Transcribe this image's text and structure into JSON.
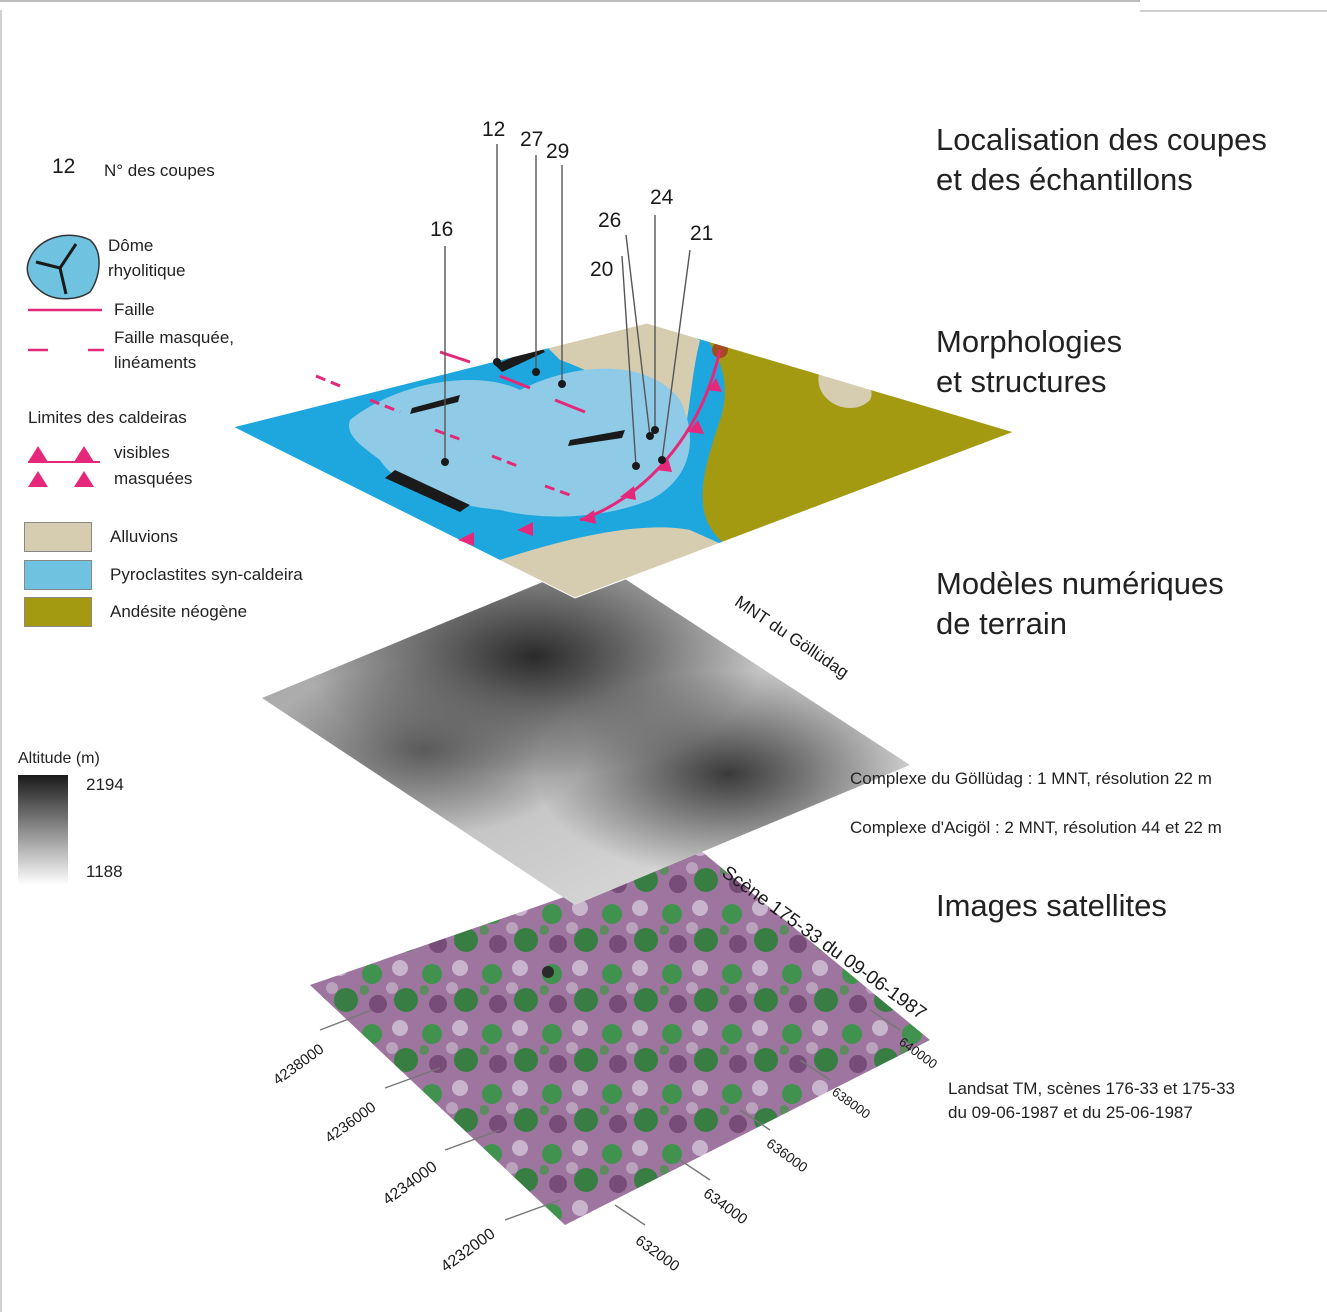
{
  "headings": {
    "localisation_line1": "Localisation des coupes",
    "localisation_line2": "et des échantillons",
    "morphologies_line1": "Morphologies",
    "morphologies_line2": "et structures",
    "modeles_line1": "Modèles numériques",
    "modeles_line2": "de terrain",
    "images": "Images satellites"
  },
  "legend": {
    "section_number": "12",
    "section_label": "N° des coupes",
    "dome_line1": "Dôme",
    "dome_line2": "rhyolitique",
    "fault": "Faille",
    "hidden_fault_line1": "Faille masquée,",
    "hidden_fault_line2": "linéaments",
    "caldera_limits": "Limites des caldeiras",
    "caldera_visible": "visibles",
    "caldera_hidden": "masquées",
    "units": [
      {
        "label": "Alluvions",
        "color": "#d6cdb0"
      },
      {
        "label": "Pyroclastites syn-caldeira",
        "color": "#70c3e0"
      },
      {
        "label": "Andésite néogène",
        "color": "#a39a12"
      }
    ],
    "altitude_title": "Altitude (m)",
    "altitude_max": "2194",
    "altitude_min": "1188"
  },
  "section_labels": [
    "12",
    "27",
    "29",
    "16",
    "26",
    "24",
    "20",
    "21"
  ],
  "dem": {
    "layer_label": "MNT du Göllüdag",
    "note1": "Complexe du Göllüdag : 1 MNT, résolution 22 m",
    "note2": "Complexe d'Acigöl : 2 MNT, résolution 44 et 22 m"
  },
  "satellite": {
    "layer_label": "Scène 175-33 du 09-06-1987",
    "note_line1": "Landsat TM, scènes 176-33 et 175-33",
    "note_line2": "du 09-06-1987 et du 25-06-1987",
    "northing_ticks": [
      "4238000",
      "4236000",
      "4234000",
      "4232000"
    ],
    "easting_ticks": [
      "640000",
      "638000",
      "636000",
      "634000",
      "632000"
    ]
  },
  "colors": {
    "pyro": "#1ea7de",
    "pyro_light": "#8fcbe6",
    "andesite": "#a39a12",
    "alluvion": "#d6cdb0",
    "fault": "#e6287a",
    "dome_dark": "#1a1a1a"
  }
}
